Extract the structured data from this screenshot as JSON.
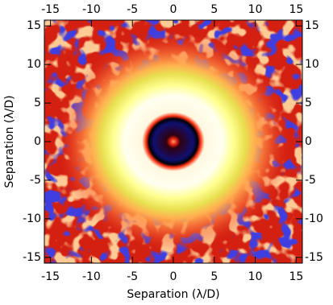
{
  "chart_data": {
    "type": "heatmap",
    "xlabel": "Separation (λ/D)",
    "ylabel": "Separation (λ/D)",
    "xlim": [
      -15.75,
      15.75
    ],
    "ylim": [
      -15.75,
      15.75
    ],
    "xticks": [
      -15,
      -10,
      -5,
      0,
      5,
      10,
      15
    ],
    "yticks": [
      -15,
      -10,
      -5,
      0,
      5,
      10,
      15
    ]
  }
}
